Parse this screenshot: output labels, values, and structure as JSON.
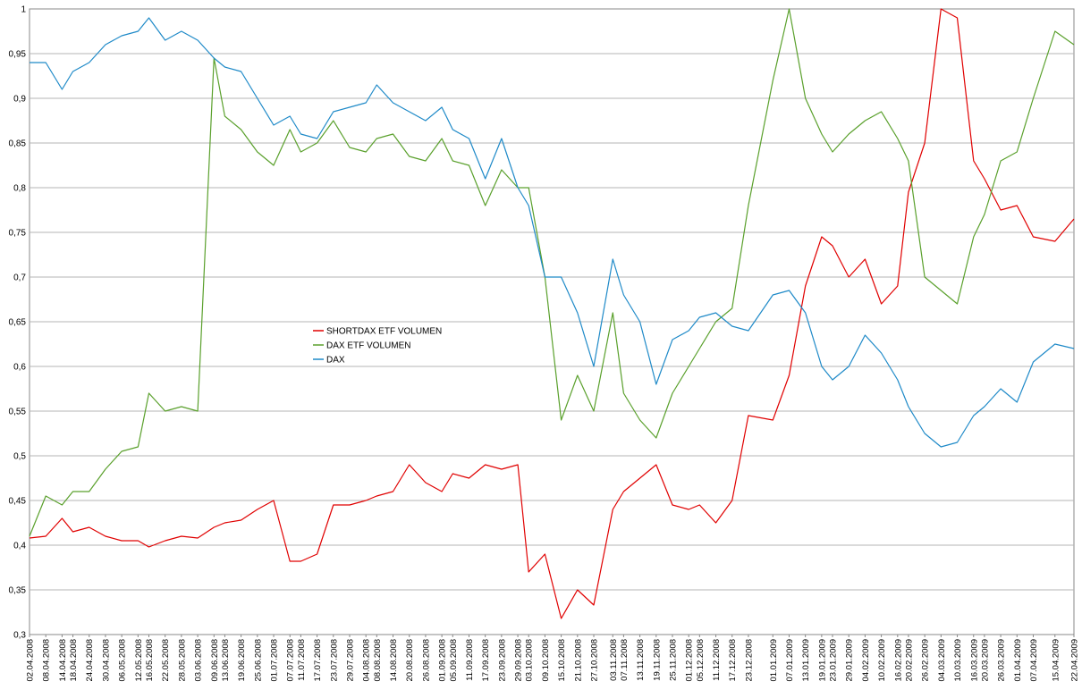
{
  "chart_data": {
    "type": "line",
    "title": "",
    "xlabel": "",
    "ylabel": "",
    "ylim": [
      0.3,
      1.0
    ],
    "yticks": [
      "0,3",
      "0,35",
      "0,4",
      "0,45",
      "0,5",
      "0,55",
      "0,6",
      "0,65",
      "0,7",
      "0,75",
      "0,8",
      "0,85",
      "0,9",
      "0,95",
      "1"
    ],
    "grid": true,
    "legend_placement": "center-left",
    "x_start": "02.04.2008",
    "x_end": "22.04.2009",
    "x_tick_labels": [
      "02.04.2008",
      "08.04.2008",
      "14.04.2008",
      "18.04.2008",
      "24.04.2008",
      "30.04.2008",
      "06.05.2008",
      "12.05.2008",
      "16.05.2008",
      "22.05.2008",
      "28.05.2008",
      "03.06.2008",
      "09.06.2008",
      "13.06.2008",
      "19.06.2008",
      "25.06.2008",
      "01.07.2008",
      "07.07.2008",
      "11.07.2008",
      "17.07.2008",
      "23.07.2008",
      "29.07.2008",
      "04.08.2008",
      "08.08.2008",
      "14.08.2008",
      "20.08.2008",
      "26.08.2008",
      "01.09.2008",
      "05.09.2008",
      "11.09.2008",
      "17.09.2008",
      "23.09.2008",
      "29.09.2008",
      "03.10.2008",
      "09.10.2008",
      "15.10.2008",
      "21.10.2008",
      "27.10.2008",
      "03.11.2008",
      "07.11.2008",
      "13.11.2008",
      "19.11.2008",
      "25.11.2008",
      "01.12.2008",
      "05.12.2008",
      "11.12.2008",
      "17.12.2008",
      "23.12.2008",
      "01.01.2009",
      "07.01.2009",
      "13.01.2009",
      "19.01.2009",
      "23.01.2009",
      "29.01.2009",
      "04.02.2009",
      "10.02.2009",
      "16.02.2009",
      "20.02.2009",
      "26.02.2009",
      "04.03.2009",
      "10.03.2009",
      "16.03.2009",
      "20.03.2009",
      "26.03.2009",
      "01.04.2009",
      "07.04.2009",
      "15.04.2009",
      "22.04.2009"
    ],
    "series": [
      {
        "name": "SHORTDAX ETF VOLUMEN",
        "color": "#e00000",
        "points": [
          [
            "02.04.2008",
            0.408
          ],
          [
            "08.04.2008",
            0.41
          ],
          [
            "14.04.2008",
            0.43
          ],
          [
            "18.04.2008",
            0.415
          ],
          [
            "24.04.2008",
            0.42
          ],
          [
            "30.04.2008",
            0.41
          ],
          [
            "06.05.2008",
            0.405
          ],
          [
            "12.05.2008",
            0.405
          ],
          [
            "16.05.2008",
            0.398
          ],
          [
            "22.05.2008",
            0.405
          ],
          [
            "28.05.2008",
            0.41
          ],
          [
            "03.06.2008",
            0.408
          ],
          [
            "09.06.2008",
            0.42
          ],
          [
            "13.06.2008",
            0.425
          ],
          [
            "19.06.2008",
            0.428
          ],
          [
            "25.06.2008",
            0.44
          ],
          [
            "01.07.2008",
            0.45
          ],
          [
            "07.07.2008",
            0.382
          ],
          [
            "11.07.2008",
            0.382
          ],
          [
            "17.07.2008",
            0.39
          ],
          [
            "23.07.2008",
            0.445
          ],
          [
            "29.07.2008",
            0.445
          ],
          [
            "04.08.2008",
            0.45
          ],
          [
            "08.08.2008",
            0.455
          ],
          [
            "14.08.2008",
            0.46
          ],
          [
            "20.08.2008",
            0.49
          ],
          [
            "26.08.2008",
            0.47
          ],
          [
            "01.09.2008",
            0.46
          ],
          [
            "05.09.2008",
            0.48
          ],
          [
            "11.09.2008",
            0.475
          ],
          [
            "17.09.2008",
            0.49
          ],
          [
            "23.09.2008",
            0.485
          ],
          [
            "29.09.2008",
            0.49
          ],
          [
            "03.10.2008",
            0.37
          ],
          [
            "09.10.2008",
            0.39
          ],
          [
            "15.10.2008",
            0.318
          ],
          [
            "21.10.2008",
            0.35
          ],
          [
            "27.10.2008",
            0.333
          ],
          [
            "03.11.2008",
            0.44
          ],
          [
            "07.11.2008",
            0.46
          ],
          [
            "13.11.2008",
            0.475
          ],
          [
            "19.11.2008",
            0.49
          ],
          [
            "25.11.2008",
            0.445
          ],
          [
            "01.12.2008",
            0.44
          ],
          [
            "05.12.2008",
            0.445
          ],
          [
            "11.12.2008",
            0.425
          ],
          [
            "17.12.2008",
            0.45
          ],
          [
            "23.12.2008",
            0.545
          ],
          [
            "01.01.2009",
            0.54
          ],
          [
            "07.01.2009",
            0.59
          ],
          [
            "13.01.2009",
            0.69
          ],
          [
            "19.01.2009",
            0.745
          ],
          [
            "23.01.2009",
            0.735
          ],
          [
            "29.01.2009",
            0.7
          ],
          [
            "04.02.2009",
            0.72
          ],
          [
            "10.02.2009",
            0.67
          ],
          [
            "16.02.2009",
            0.69
          ],
          [
            "20.02.2009",
            0.795
          ],
          [
            "26.02.2009",
            0.85
          ],
          [
            "04.03.2009",
            1.0
          ],
          [
            "10.03.2009",
            0.99
          ],
          [
            "16.03.2009",
            0.83
          ],
          [
            "20.03.2009",
            0.81
          ],
          [
            "26.03.2009",
            0.775
          ],
          [
            "01.04.2009",
            0.78
          ],
          [
            "07.04.2009",
            0.745
          ],
          [
            "15.04.2009",
            0.74
          ],
          [
            "22.04.2009",
            0.765
          ]
        ]
      },
      {
        "name": "DAX ETF VOLUMEN",
        "color": "#5aa02c",
        "points": [
          [
            "02.04.2008",
            0.41
          ],
          [
            "08.04.2008",
            0.455
          ],
          [
            "14.04.2008",
            0.445
          ],
          [
            "18.04.2008",
            0.46
          ],
          [
            "24.04.2008",
            0.46
          ],
          [
            "30.04.2008",
            0.485
          ],
          [
            "06.05.2008",
            0.505
          ],
          [
            "12.05.2008",
            0.51
          ],
          [
            "16.05.2008",
            0.57
          ],
          [
            "22.05.2008",
            0.55
          ],
          [
            "28.05.2008",
            0.555
          ],
          [
            "03.06.2008",
            0.55
          ],
          [
            "09.06.2008",
            0.945
          ],
          [
            "13.06.2008",
            0.88
          ],
          [
            "19.06.2008",
            0.865
          ],
          [
            "25.06.2008",
            0.84
          ],
          [
            "01.07.2008",
            0.825
          ],
          [
            "07.07.2008",
            0.865
          ],
          [
            "11.07.2008",
            0.84
          ],
          [
            "17.07.2008",
            0.85
          ],
          [
            "23.07.2008",
            0.875
          ],
          [
            "29.07.2008",
            0.845
          ],
          [
            "04.08.2008",
            0.84
          ],
          [
            "08.08.2008",
            0.855
          ],
          [
            "14.08.2008",
            0.86
          ],
          [
            "20.08.2008",
            0.835
          ],
          [
            "26.08.2008",
            0.83
          ],
          [
            "01.09.2008",
            0.855
          ],
          [
            "05.09.2008",
            0.83
          ],
          [
            "11.09.2008",
            0.825
          ],
          [
            "17.09.2008",
            0.78
          ],
          [
            "23.09.2008",
            0.82
          ],
          [
            "29.09.2008",
            0.8
          ],
          [
            "03.10.2008",
            0.8
          ],
          [
            "09.10.2008",
            0.7
          ],
          [
            "15.10.2008",
            0.54
          ],
          [
            "21.10.2008",
            0.59
          ],
          [
            "27.10.2008",
            0.55
          ],
          [
            "03.11.2008",
            0.66
          ],
          [
            "07.11.2008",
            0.57
          ],
          [
            "13.11.2008",
            0.54
          ],
          [
            "19.11.2008",
            0.52
          ],
          [
            "25.11.2008",
            0.57
          ],
          [
            "01.12.2008",
            0.6
          ],
          [
            "05.12.2008",
            0.62
          ],
          [
            "11.12.2008",
            0.65
          ],
          [
            "17.12.2008",
            0.665
          ],
          [
            "23.12.2008",
            0.78
          ],
          [
            "01.01.2009",
            0.92
          ],
          [
            "07.01.2009",
            1.0
          ],
          [
            "13.01.2009",
            0.9
          ],
          [
            "19.01.2009",
            0.86
          ],
          [
            "23.01.2009",
            0.84
          ],
          [
            "29.01.2009",
            0.86
          ],
          [
            "04.02.2009",
            0.875
          ],
          [
            "10.02.2009",
            0.885
          ],
          [
            "16.02.2009",
            0.855
          ],
          [
            "20.02.2009",
            0.83
          ],
          [
            "26.02.2009",
            0.7
          ],
          [
            "04.03.2009",
            0.685
          ],
          [
            "10.03.2009",
            0.67
          ],
          [
            "16.03.2009",
            0.745
          ],
          [
            "20.03.2009",
            0.77
          ],
          [
            "26.03.2009",
            0.83
          ],
          [
            "01.04.2009",
            0.84
          ],
          [
            "07.04.2009",
            0.9
          ],
          [
            "15.04.2009",
            0.975
          ],
          [
            "22.04.2009",
            0.96
          ]
        ]
      },
      {
        "name": "DAX",
        "color": "#1f8ac8",
        "points": [
          [
            "02.04.2008",
            0.94
          ],
          [
            "08.04.2008",
            0.94
          ],
          [
            "14.04.2008",
            0.91
          ],
          [
            "18.04.2008",
            0.93
          ],
          [
            "24.04.2008",
            0.94
          ],
          [
            "30.04.2008",
            0.96
          ],
          [
            "06.05.2008",
            0.97
          ],
          [
            "12.05.2008",
            0.975
          ],
          [
            "16.05.2008",
            0.99
          ],
          [
            "22.05.2008",
            0.965
          ],
          [
            "28.05.2008",
            0.975
          ],
          [
            "03.06.2008",
            0.965
          ],
          [
            "09.06.2008",
            0.945
          ],
          [
            "13.06.2008",
            0.935
          ],
          [
            "19.06.2008",
            0.93
          ],
          [
            "25.06.2008",
            0.9
          ],
          [
            "01.07.2008",
            0.87
          ],
          [
            "07.07.2008",
            0.88
          ],
          [
            "11.07.2008",
            0.86
          ],
          [
            "17.07.2008",
            0.855
          ],
          [
            "23.07.2008",
            0.885
          ],
          [
            "29.07.2008",
            0.89
          ],
          [
            "04.08.2008",
            0.895
          ],
          [
            "08.08.2008",
            0.915
          ],
          [
            "14.08.2008",
            0.895
          ],
          [
            "20.08.2008",
            0.885
          ],
          [
            "26.08.2008",
            0.875
          ],
          [
            "01.09.2008",
            0.89
          ],
          [
            "05.09.2008",
            0.865
          ],
          [
            "11.09.2008",
            0.855
          ],
          [
            "17.09.2008",
            0.81
          ],
          [
            "23.09.2008",
            0.855
          ],
          [
            "29.09.2008",
            0.8
          ],
          [
            "03.10.2008",
            0.78
          ],
          [
            "09.10.2008",
            0.7
          ],
          [
            "15.10.2008",
            0.7
          ],
          [
            "21.10.2008",
            0.66
          ],
          [
            "27.10.2008",
            0.6
          ],
          [
            "03.11.2008",
            0.72
          ],
          [
            "07.11.2008",
            0.68
          ],
          [
            "13.11.2008",
            0.65
          ],
          [
            "19.11.2008",
            0.58
          ],
          [
            "25.11.2008",
            0.63
          ],
          [
            "01.12.2008",
            0.64
          ],
          [
            "05.12.2008",
            0.655
          ],
          [
            "11.12.2008",
            0.66
          ],
          [
            "17.12.2008",
            0.645
          ],
          [
            "23.12.2008",
            0.64
          ],
          [
            "01.01.2009",
            0.68
          ],
          [
            "07.01.2009",
            0.685
          ],
          [
            "13.01.2009",
            0.66
          ],
          [
            "19.01.2009",
            0.6
          ],
          [
            "23.01.2009",
            0.585
          ],
          [
            "29.01.2009",
            0.6
          ],
          [
            "04.02.2009",
            0.635
          ],
          [
            "10.02.2009",
            0.615
          ],
          [
            "16.02.2009",
            0.585
          ],
          [
            "20.02.2009",
            0.555
          ],
          [
            "26.02.2009",
            0.525
          ],
          [
            "04.03.2009",
            0.51
          ],
          [
            "10.03.2009",
            0.515
          ],
          [
            "16.03.2009",
            0.545
          ],
          [
            "20.03.2009",
            0.555
          ],
          [
            "26.03.2009",
            0.575
          ],
          [
            "01.04.2009",
            0.56
          ],
          [
            "07.04.2009",
            0.605
          ],
          [
            "15.04.2009",
            0.625
          ],
          [
            "22.04.2009",
            0.62
          ]
        ]
      }
    ]
  }
}
